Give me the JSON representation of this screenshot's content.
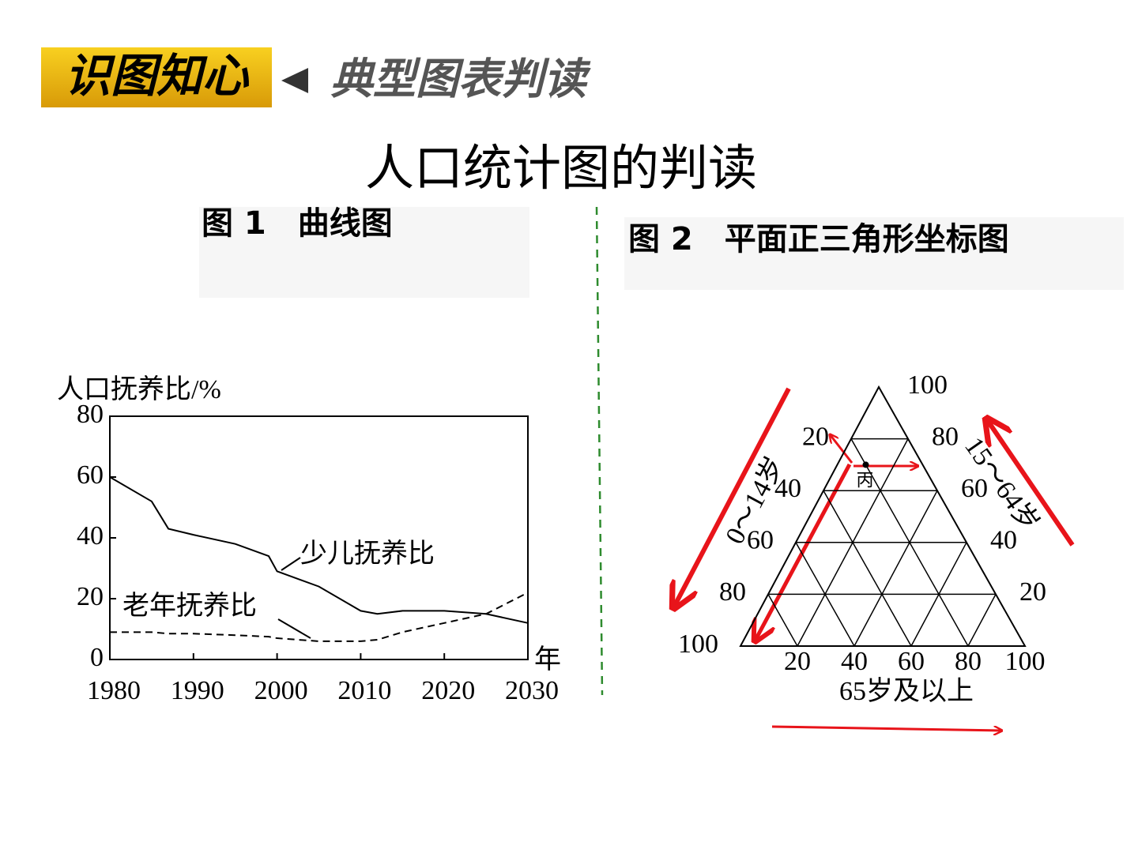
{
  "header": {
    "badge": "识图知心",
    "subtitle": "典型图表判读"
  },
  "title": "人口统计图的判读",
  "chart_data": [
    {
      "type": "line",
      "caption": "图 1　曲线图",
      "ylabel": "人口抚养比/%",
      "xlabel": "年",
      "x": [
        1980,
        1985,
        1987,
        1990,
        1995,
        1999,
        2000,
        2005,
        2010,
        2012,
        2015,
        2020,
        2025,
        2030
      ],
      "series": [
        {
          "name": "少儿抚养比",
          "color": "#000000",
          "dashed": false,
          "values": [
            60,
            52,
            43,
            41,
            38,
            34,
            29,
            24,
            16,
            15,
            16,
            16,
            15,
            12
          ]
        },
        {
          "name": "老年抚养比",
          "color": "#000000",
          "dashed": true,
          "values": [
            9,
            9,
            8.5,
            8.5,
            8,
            7.5,
            7,
            6,
            6,
            6.5,
            9,
            12,
            15,
            22
          ]
        }
      ],
      "xlim": [
        1980,
        2030
      ],
      "xticks": [
        1980,
        1990,
        2000,
        2010,
        2020,
        2030
      ],
      "ylim": [
        0,
        80
      ],
      "yticks": [
        0,
        20,
        40,
        60,
        80
      ]
    },
    {
      "type": "ternary",
      "caption": "图 2　平面正三角形坐标图",
      "axes": [
        {
          "name": "0～14岁",
          "ticks": [
            20,
            40,
            60,
            80,
            100
          ]
        },
        {
          "name": "15～64岁",
          "ticks": [
            20,
            40,
            60,
            80,
            100
          ]
        },
        {
          "name": "65岁及以上",
          "ticks": [
            20,
            40,
            60,
            80,
            100
          ]
        }
      ],
      "points": [
        {
          "label": "丙",
          "values": [
            20,
            70,
            10
          ]
        }
      ]
    }
  ]
}
